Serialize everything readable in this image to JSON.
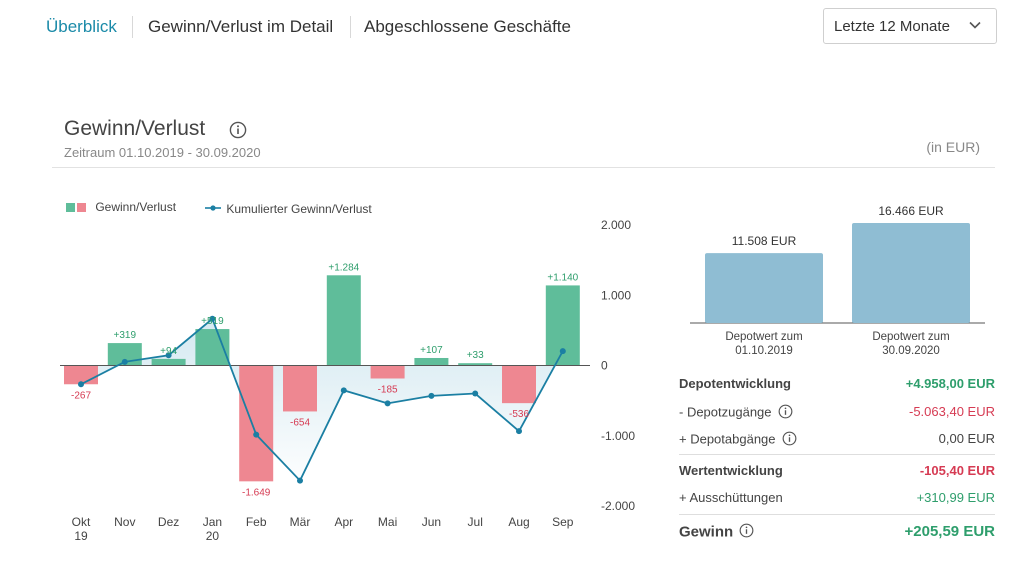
{
  "tabs": [
    {
      "label": "Überblick",
      "active": true
    },
    {
      "label": "Gewinn/Verlust im Detail",
      "active": false
    },
    {
      "label": "Abgeschlossene Geschäfte",
      "active": false
    }
  ],
  "period_select": {
    "value": "Letzte 12 Monate"
  },
  "panel": {
    "title": "Gewinn/Verlust",
    "subtitle": "Zeitraum 01.10.2019 - 30.09.2020",
    "unit": "(in EUR)"
  },
  "legend": {
    "bars": "Gewinn/Verlust",
    "line": "Kumulierter Gewinn/Verlust"
  },
  "colors": {
    "positive": "#5fbd9a",
    "negative": "#ee8791",
    "line": "#1b7fa3",
    "depot": "#8fbdd3",
    "accent": "#1a8aa8"
  },
  "chart_data": [
    {
      "type": "bar",
      "categories": [
        "Okt 19",
        "Nov",
        "Dez",
        "Jan 20",
        "Feb",
        "Mär",
        "Apr",
        "Mai",
        "Jun",
        "Jul",
        "Aug",
        "Sep"
      ],
      "series": [
        {
          "name": "Gewinn/Verlust",
          "values": [
            -267,
            319,
            94,
            519,
            -1649,
            -654,
            1284,
            -185,
            107,
            33,
            -536,
            1140
          ],
          "labels": [
            "-267",
            "+319",
            "+94",
            "+519",
            "-1.649",
            "-654",
            "+1.284",
            "-185",
            "+107",
            "+33",
            "-536",
            "+1.140"
          ]
        },
        {
          "name": "Kumulierter Gewinn/Verlust",
          "type": "line",
          "values": [
            -267,
            52,
            146,
            665,
            -984,
            -1638,
            -354,
            -539,
            -432,
            -399,
            -935,
            205
          ]
        }
      ],
      "y_ticks": [
        "2.000",
        "1.000",
        "0",
        "-1.000",
        "-2.000"
      ],
      "ylim": [
        -2000,
        2000
      ]
    },
    {
      "type": "bar",
      "categories": [
        "Depotwert zum 01.10.2019",
        "Depotwert zum 30.09.2020"
      ],
      "values": [
        11508,
        16466
      ],
      "labels": [
        "11.508 EUR",
        "16.466 EUR"
      ]
    }
  ],
  "x_labels": [
    {
      "l1": "Okt",
      "l2": "19"
    },
    {
      "l1": "Nov",
      "l2": ""
    },
    {
      "l1": "Dez",
      "l2": ""
    },
    {
      "l1": "Jan",
      "l2": "20"
    },
    {
      "l1": "Feb",
      "l2": ""
    },
    {
      "l1": "Mär",
      "l2": ""
    },
    {
      "l1": "Apr",
      "l2": ""
    },
    {
      "l1": "Mai",
      "l2": ""
    },
    {
      "l1": "Jun",
      "l2": ""
    },
    {
      "l1": "Jul",
      "l2": ""
    },
    {
      "l1": "Aug",
      "l2": ""
    },
    {
      "l1": "Sep",
      "l2": ""
    }
  ],
  "depot_labels": [
    {
      "l1": "Depotwert zum",
      "l2": "01.10.2019"
    },
    {
      "l1": "Depotwert zum",
      "l2": "30.09.2020"
    }
  ],
  "summary": {
    "depotentwicklung": {
      "label": "Depotentwicklung",
      "value": "+4.958,00 EUR"
    },
    "zugaenge": {
      "label": "- Depotzugänge",
      "value": "-5.063,40 EUR"
    },
    "abgaenge": {
      "label": "+ Depotabgänge",
      "value": "0,00 EUR"
    },
    "wertentwicklung": {
      "label": "Wertentwicklung",
      "value": "-105,40 EUR"
    },
    "ausschuettungen": {
      "label": "+ Ausschüttungen",
      "value": "+310,99 EUR"
    },
    "gewinn": {
      "label": "Gewinn",
      "value": "+205,59 EUR"
    }
  }
}
